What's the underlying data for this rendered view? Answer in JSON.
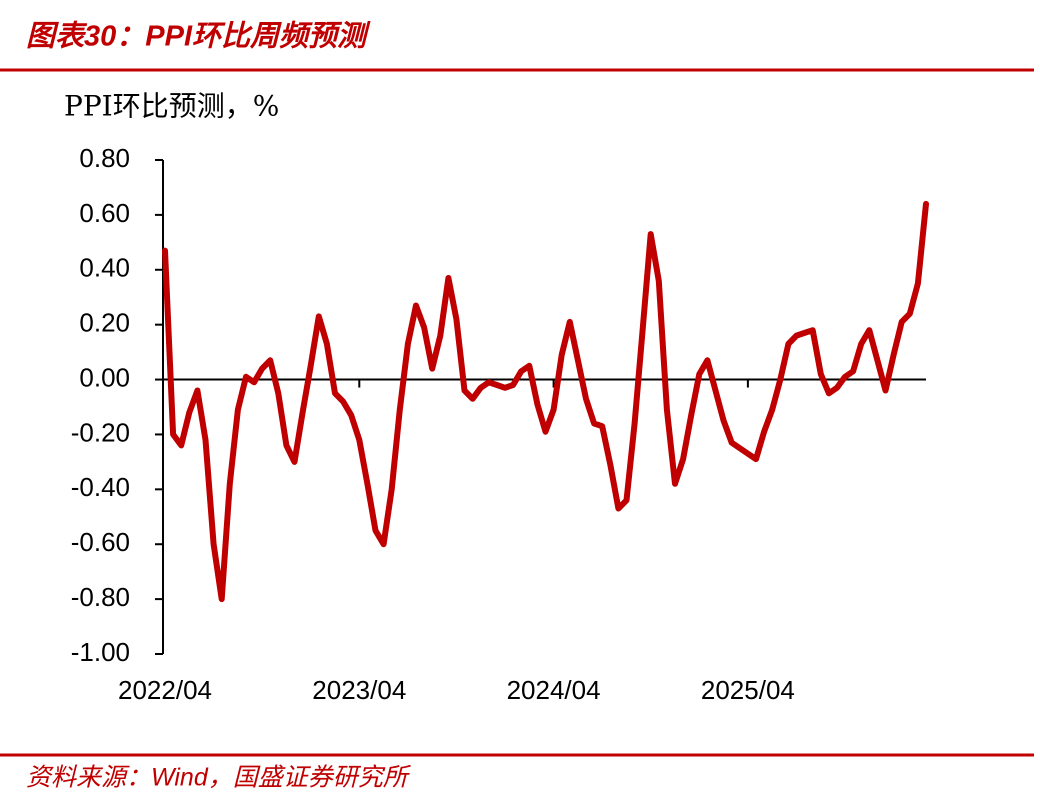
{
  "chart_data": {
    "type": "line",
    "title": "图表30：PPI环比周频预测",
    "ylabel": "PPI环比预测，%",
    "source": "资料来源：Wind，国盛证券研究所",
    "color": "#c00000",
    "categories": [
      "2022/04",
      null,
      null,
      null,
      null,
      null,
      null,
      null,
      null,
      null,
      null,
      null,
      null,
      null,
      null,
      null,
      null,
      null,
      null,
      null,
      null,
      null,
      null,
      null,
      "2023/04",
      null,
      null,
      null,
      null,
      null,
      null,
      null,
      null,
      null,
      null,
      null,
      null,
      null,
      null,
      null,
      null,
      null,
      null,
      null,
      null,
      null,
      null,
      null,
      "2024/04",
      null,
      null,
      null,
      null,
      null,
      null,
      null,
      null,
      null,
      null,
      null,
      null,
      null,
      null,
      null,
      null,
      null,
      null,
      null,
      null,
      null,
      null,
      null,
      "2025/04",
      null,
      null,
      null,
      null,
      null,
      null,
      null,
      null,
      null,
      null,
      null,
      null,
      null,
      null,
      null,
      null,
      null,
      null,
      null,
      null,
      null,
      null
    ],
    "values": [
      0.47,
      -0.2,
      -0.24,
      -0.12,
      -0.04,
      -0.22,
      -0.6,
      -0.8,
      -0.38,
      -0.11,
      0.01,
      -0.01,
      0.04,
      0.07,
      -0.05,
      -0.24,
      -0.3,
      -0.12,
      0.05,
      0.23,
      0.13,
      -0.05,
      -0.08,
      -0.13,
      -0.22,
      -0.38,
      -0.55,
      -0.6,
      -0.4,
      -0.11,
      0.13,
      0.27,
      0.19,
      0.04,
      0.16,
      0.37,
      0.22,
      -0.04,
      -0.07,
      -0.03,
      -0.01,
      -0.02,
      -0.03,
      -0.02,
      0.03,
      0.05,
      -0.09,
      -0.19,
      -0.11,
      0.09,
      0.21,
      0.07,
      -0.07,
      -0.16,
      -0.17,
      -0.31,
      -0.47,
      -0.44,
      -0.16,
      0.18,
      0.53,
      0.36,
      -0.11,
      -0.38,
      -0.29,
      -0.13,
      0.02,
      0.07,
      -0.04,
      -0.15,
      -0.23,
      -0.25,
      -0.27,
      -0.29,
      -0.19,
      -0.11,
      0.0,
      0.13,
      0.16,
      0.17,
      0.18,
      0.02,
      -0.05,
      -0.03,
      0.01,
      0.03,
      0.13,
      0.18,
      0.07,
      -0.04,
      0.09,
      0.21,
      0.24,
      0.35,
      0.64
    ],
    "ylim": [
      -1,
      0.8
    ],
    "yticks": [
      {
        "value": -1,
        "label": "-1.00"
      },
      {
        "value": -0.8,
        "label": "-0.80"
      },
      {
        "value": -0.6,
        "label": "-0.60"
      },
      {
        "value": -0.4,
        "label": "-0.40"
      },
      {
        "value": -0.2,
        "label": "-0.20"
      },
      {
        "value": 0,
        "label": "0.00"
      },
      {
        "value": 0.2,
        "label": "0.20"
      },
      {
        "value": 0.4,
        "label": "0.40"
      },
      {
        "value": 0.6,
        "label": "0.60"
      },
      {
        "value": 0.8,
        "label": "0.80"
      }
    ]
  }
}
